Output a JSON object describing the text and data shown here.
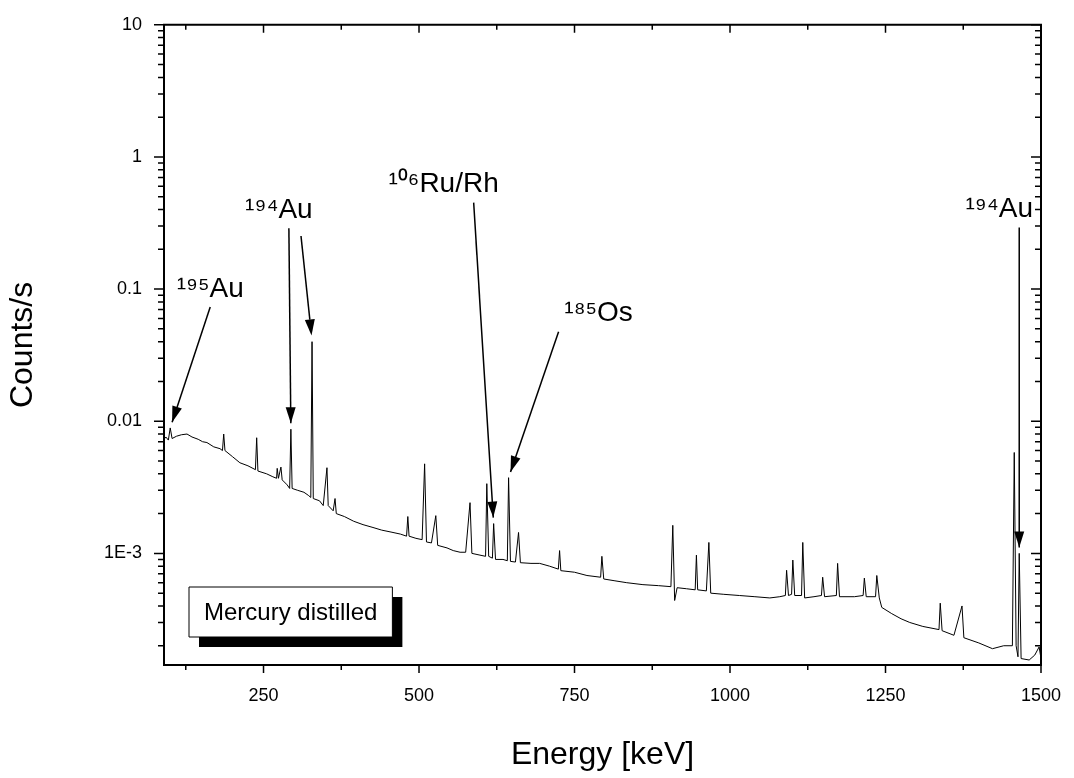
{
  "chart_data": {
    "type": "line",
    "xlabel": "Energy [keV]",
    "ylabel": "Counts/s",
    "log": "y",
    "xlim": [
      90,
      1500
    ],
    "xticks": [
      {
        "value": 125,
        "label": null
      },
      250,
      {
        "value": 375,
        "label": null
      },
      500,
      {
        "value": 625,
        "label": null
      },
      750,
      {
        "value": 875,
        "label": null
      },
      1000,
      {
        "value": 1125,
        "label": null
      },
      1250,
      {
        "value": 1375,
        "label": null
      },
      1500
    ],
    "ylim": [
      0.000143,
      10
    ],
    "yticks": [
      {
        "value": 0.0002,
        "label": null
      },
      {
        "value": 0.0003,
        "label": null
      },
      {
        "value": 0.0004,
        "label": null
      },
      {
        "value": 0.0005,
        "label": null
      },
      {
        "value": 0.0006,
        "label": null
      },
      {
        "value": 0.0007,
        "label": null
      },
      {
        "value": 0.0008,
        "label": null
      },
      {
        "value": 0.0009,
        "label": null
      },
      {
        "value": 0.001,
        "label": "1E-3"
      },
      {
        "value": 0.002,
        "label": null
      },
      {
        "value": 0.003,
        "label": null
      },
      {
        "value": 0.004,
        "label": null
      },
      {
        "value": 0.005,
        "label": null
      },
      {
        "value": 0.006,
        "label": null
      },
      {
        "value": 0.007,
        "label": null
      },
      {
        "value": 0.008,
        "label": null
      },
      {
        "value": 0.009,
        "label": null
      },
      0.01,
      {
        "value": 0.02,
        "label": null
      },
      {
        "value": 0.03,
        "label": null
      },
      {
        "value": 0.04,
        "label": null
      },
      {
        "value": 0.05,
        "label": null
      },
      {
        "value": 0.06,
        "label": null
      },
      {
        "value": 0.07,
        "label": null
      },
      {
        "value": 0.08,
        "label": null
      },
      {
        "value": 0.09,
        "label": null
      },
      0.1,
      {
        "value": 0.2,
        "label": null
      },
      {
        "value": 0.3,
        "label": null
      },
      {
        "value": 0.4,
        "label": null
      },
      {
        "value": 0.5,
        "label": null
      },
      {
        "value": 0.6,
        "label": null
      },
      {
        "value": 0.7,
        "label": null
      },
      {
        "value": 0.8,
        "label": null
      },
      {
        "value": 0.9,
        "label": null
      },
      1,
      {
        "value": 2,
        "label": null
      },
      {
        "value": 3,
        "label": null
      },
      {
        "value": 4,
        "label": null
      },
      {
        "value": 5,
        "label": null
      },
      {
        "value": 6,
        "label": null
      },
      {
        "value": 7,
        "label": null
      },
      {
        "value": 8,
        "label": null
      },
      {
        "value": 9,
        "label": null
      },
      10
    ],
    "legend": false,
    "marker": "none",
    "line_style": "solid",
    "annotations": [
      {
        "text": "¹⁹⁵Au",
        "x": 100,
        "y": 0.0089
      },
      {
        "text": "¹⁹⁴Au",
        "x": 294,
        "y": 0.0087
      },
      {
        "text": "¹⁰⁶Ru/Rh",
        "x": 620,
        "y": 0.00168
      },
      {
        "text": "¹⁸⁵Os",
        "x": 644,
        "y": 0.00374
      },
      {
        "text": "¹⁹⁴Au",
        "x": 1465,
        "y": 0.001
      },
      "Mercury distilled"
    ],
    "series": [
      {
        "color": "#000000",
        "x": [
          90,
          93,
          97,
          100,
          103,
          110,
          118,
          127,
          135,
          145,
          152,
          159,
          170,
          180,
          184,
          186,
          188,
          200,
          212,
          225,
          237,
          239,
          241,
          255,
          265,
          271,
          272,
          274,
          278,
          280,
          288,
          292,
          294,
          296,
          305,
          315,
          322,
          326,
          328,
          330,
          340,
          346,
          352,
          354,
          362,
          365,
          367,
          380,
          395,
          410,
          426,
          440,
          455,
          470,
          480,
          482,
          484,
          495,
          505,
          509,
          512,
          520,
          527,
          530,
          545,
          555,
          566,
          575,
          582,
          585,
          598,
          607,
          609,
          612,
          618,
          620,
          623,
          635,
          642,
          644,
          647,
          655,
          660,
          663,
          680,
          694,
          710,
          724,
          726,
          728,
          750,
          770,
          792,
          794,
          797,
          815,
          834,
          860,
          885,
          905,
          908,
          911,
          915,
          930,
          944,
          946,
          948,
          962,
          966,
          969,
          990,
          1015,
          1040,
          1064,
          1080,
          1089,
          1091,
          1094,
          1099,
          1101,
          1104,
          1115,
          1117,
          1120,
          1135,
          1147,
          1149,
          1152,
          1171,
          1173,
          1176,
          1200,
          1214,
          1216,
          1219,
          1234,
          1236,
          1240,
          1244,
          1260,
          1275,
          1289,
          1310,
          1336,
          1338,
          1341,
          1360,
          1373,
          1376,
          1400,
          1422,
          1440,
          1454,
          1457,
          1460,
          1463,
          1465,
          1468,
          1481,
          1490,
          1497,
          1500
        ],
        "values": [
          0.0073,
          0.0076,
          0.0072,
          0.0089,
          0.0074,
          0.0077,
          0.0079,
          0.008,
          0.0076,
          0.0073,
          0.007,
          0.0069,
          0.0064,
          0.0062,
          0.006,
          0.008,
          0.006,
          0.0054,
          0.00485,
          0.0046,
          0.0043,
          0.0075,
          0.0042,
          0.004,
          0.0038,
          0.0037,
          0.0044,
          0.0037,
          0.0045,
          0.0036,
          0.0033,
          0.0031,
          0.0087,
          0.0031,
          0.003,
          0.0029,
          0.00275,
          0.00265,
          0.04,
          0.0026,
          0.0025,
          0.0023,
          0.00445,
          0.0023,
          0.0021,
          0.0026,
          0.002,
          0.0019,
          0.00175,
          0.00165,
          0.00157,
          0.0015,
          0.00145,
          0.0014,
          0.00135,
          0.0019,
          0.00135,
          0.0013,
          0.00127,
          0.00476,
          0.00122,
          0.0012,
          0.00193,
          0.00115,
          0.0011,
          0.00105,
          0.00102,
          0.00102,
          0.00242,
          0.001,
          0.00097,
          0.00095,
          0.00337,
          0.00095,
          0.00092,
          0.00168,
          0.0009,
          0.0009,
          0.00088,
          0.00374,
          0.00087,
          0.00086,
          0.00144,
          0.00085,
          0.00084,
          0.00084,
          0.0008,
          0.00076,
          0.00105,
          0.00074,
          0.00072,
          0.00068,
          0.00066,
          0.00095,
          0.00064,
          0.00062,
          0.0006,
          0.00058,
          0.00057,
          0.00056,
          0.00163,
          0.00044,
          0.00055,
          0.00054,
          0.00053,
          0.00097,
          0.00053,
          0.00052,
          0.00121,
          0.0005,
          0.00049,
          0.00048,
          0.00047,
          0.00046,
          0.00047,
          0.00048,
          0.000745,
          0.00048,
          0.00049,
          0.00089,
          0.00048,
          0.00048,
          0.00121,
          0.00046,
          0.00047,
          0.00048,
          0.00066,
          0.00047,
          0.00048,
          0.00084,
          0.00047,
          0.00047,
          0.00048,
          0.00065,
          0.00047,
          0.00047,
          0.00068,
          0.00046,
          0.00039,
          0.00035,
          0.00032,
          0.0003,
          0.00028,
          0.000265,
          0.00042,
          0.00026,
          0.00024,
          0.0004,
          0.00023,
          0.00021,
          0.00019,
          0.0002,
          0.0002,
          0.0058,
          0.0002,
          0.000165,
          0.001,
          0.00016,
          0.000156,
          0.00017,
          0.000196,
          0.00016
        ]
      }
    ]
  }
}
